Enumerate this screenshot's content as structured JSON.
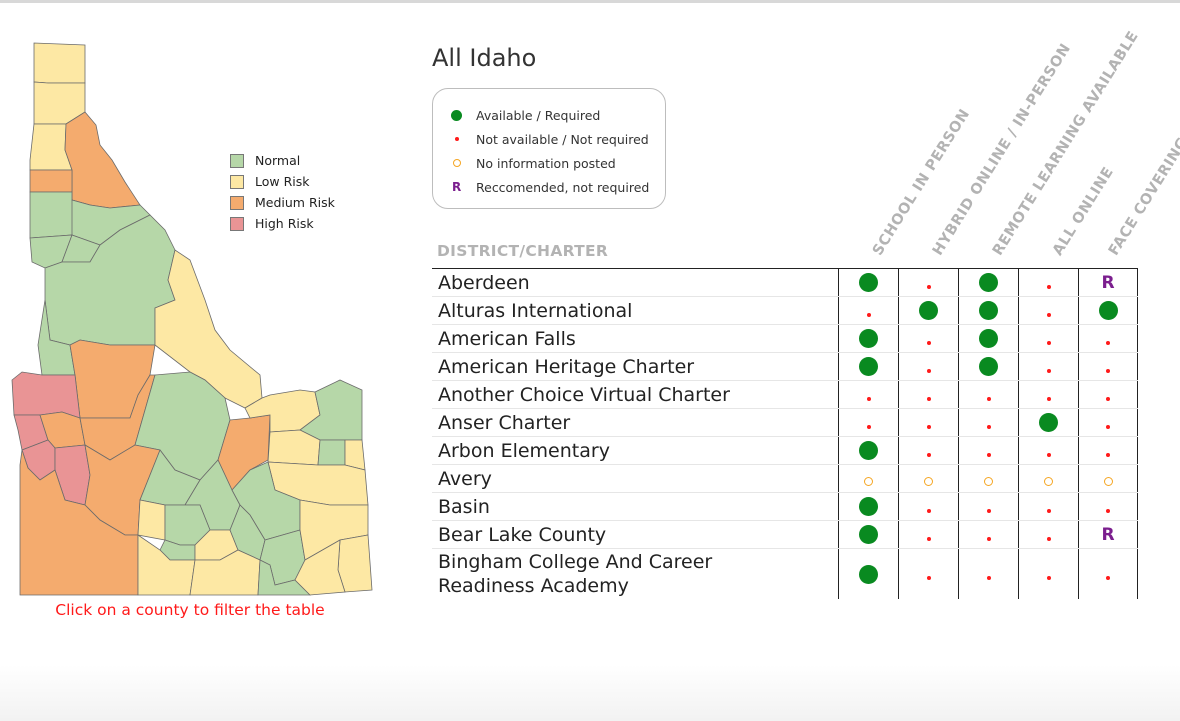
{
  "title": "All Idaho",
  "map_hint": "Click on a county to filter the table",
  "risk_legend": [
    {
      "label": "Normal",
      "color": "#b6d7a8"
    },
    {
      "label": "Low Risk",
      "color": "#fde8a4"
    },
    {
      "label": "Medium Risk",
      "color": "#f4ab6e"
    },
    {
      "label": "High Risk",
      "color": "#e99495"
    }
  ],
  "symbol_key": [
    {
      "symbol": "big-dot",
      "label": "Available / Required"
    },
    {
      "symbol": "small-dot",
      "label": "Not available / Not required"
    },
    {
      "symbol": "ring",
      "label": "No information posted"
    },
    {
      "symbol": "R",
      "label": "Reccomended, not required"
    }
  ],
  "table": {
    "name_header": "DISTRICT/CHARTER",
    "columns": [
      "SCHOOL IN PERSON",
      "HYBRID ONLINE / IN-PERSON",
      "REMOTE LEARNING AVAILABLE",
      "ALL ONLINE",
      "FACE COVERINGS"
    ],
    "rows": [
      {
        "name": "Aberdeen",
        "values": [
          "Y",
          "N",
          "Y",
          "N",
          "R"
        ]
      },
      {
        "name": "Alturas International",
        "values": [
          "N",
          "Y",
          "Y",
          "N",
          "Y"
        ]
      },
      {
        "name": "American Falls",
        "values": [
          "Y",
          "N",
          "Y",
          "N",
          "N"
        ]
      },
      {
        "name": "American Heritage Charter",
        "values": [
          "Y",
          "N",
          "Y",
          "N",
          "N"
        ]
      },
      {
        "name": "Another Choice Virtual Charter",
        "values": [
          "N",
          "N",
          "N",
          "N",
          "N"
        ]
      },
      {
        "name": "Anser Charter",
        "values": [
          "N",
          "N",
          "N",
          "Y",
          "N"
        ]
      },
      {
        "name": "Arbon Elementary",
        "values": [
          "Y",
          "N",
          "N",
          "N",
          "N"
        ]
      },
      {
        "name": "Avery",
        "values": [
          "O",
          "O",
          "O",
          "O",
          "O"
        ]
      },
      {
        "name": "Basin",
        "values": [
          "Y",
          "N",
          "N",
          "N",
          "N"
        ]
      },
      {
        "name": "Bear Lake County",
        "values": [
          "Y",
          "N",
          "N",
          "N",
          "R"
        ]
      },
      {
        "name": "Bingham College And Career Readiness Academy",
        "values": [
          "Y",
          "N",
          "N",
          "N",
          "N"
        ]
      }
    ]
  },
  "map": {
    "counties": [
      {
        "name": "boundary",
        "risk": "Low Risk"
      },
      {
        "name": "bonner",
        "risk": "Low Risk"
      },
      {
        "name": "kootenai",
        "risk": "Low Risk"
      },
      {
        "name": "shoshone",
        "risk": "Medium Risk"
      },
      {
        "name": "benewah",
        "risk": "Medium Risk"
      },
      {
        "name": "latah",
        "risk": "Normal"
      },
      {
        "name": "clearwater",
        "risk": "Normal"
      },
      {
        "name": "nez-perce",
        "risk": "Normal"
      },
      {
        "name": "lewis",
        "risk": "Normal"
      },
      {
        "name": "idaho",
        "risk": "Normal"
      },
      {
        "name": "adams",
        "risk": "Normal"
      },
      {
        "name": "valley",
        "risk": "Medium Risk"
      },
      {
        "name": "lemhi",
        "risk": "Low Risk"
      },
      {
        "name": "washington",
        "risk": "High Risk"
      },
      {
        "name": "payette",
        "risk": "High Risk"
      },
      {
        "name": "gem",
        "risk": "Medium Risk"
      },
      {
        "name": "boise",
        "risk": "Medium Risk"
      },
      {
        "name": "canyon",
        "risk": "High Risk"
      },
      {
        "name": "ada",
        "risk": "High Risk"
      },
      {
        "name": "custer",
        "risk": "Normal"
      },
      {
        "name": "butte",
        "risk": "Medium Risk"
      },
      {
        "name": "clark",
        "risk": "Low Risk"
      },
      {
        "name": "fremont",
        "risk": "Normal"
      },
      {
        "name": "jefferson",
        "risk": "Low Risk"
      },
      {
        "name": "madison",
        "risk": "Normal"
      },
      {
        "name": "teton",
        "risk": "Low Risk"
      },
      {
        "name": "elmore",
        "risk": "Medium Risk"
      },
      {
        "name": "owyhee",
        "risk": "Medium Risk"
      },
      {
        "name": "camas",
        "risk": "Normal"
      },
      {
        "name": "blaine",
        "risk": "Normal"
      },
      {
        "name": "bonneville",
        "risk": "Low Risk"
      },
      {
        "name": "bingham",
        "risk": "Normal"
      },
      {
        "name": "gooding",
        "risk": "Low Risk"
      },
      {
        "name": "lincoln",
        "risk": "Normal"
      },
      {
        "name": "jerome",
        "risk": "Normal"
      },
      {
        "name": "minidoka",
        "risk": "Low Risk"
      },
      {
        "name": "power",
        "risk": "Normal"
      },
      {
        "name": "bannock",
        "risk": "Normal"
      },
      {
        "name": "caribou",
        "risk": "Low Risk"
      },
      {
        "name": "bear-lake",
        "risk": "Low Risk"
      },
      {
        "name": "twin-falls",
        "risk": "Low Risk"
      },
      {
        "name": "cassia",
        "risk": "Low Risk"
      },
      {
        "name": "oneida",
        "risk": "Normal"
      },
      {
        "name": "franklin",
        "risk": "Low Risk"
      }
    ]
  }
}
